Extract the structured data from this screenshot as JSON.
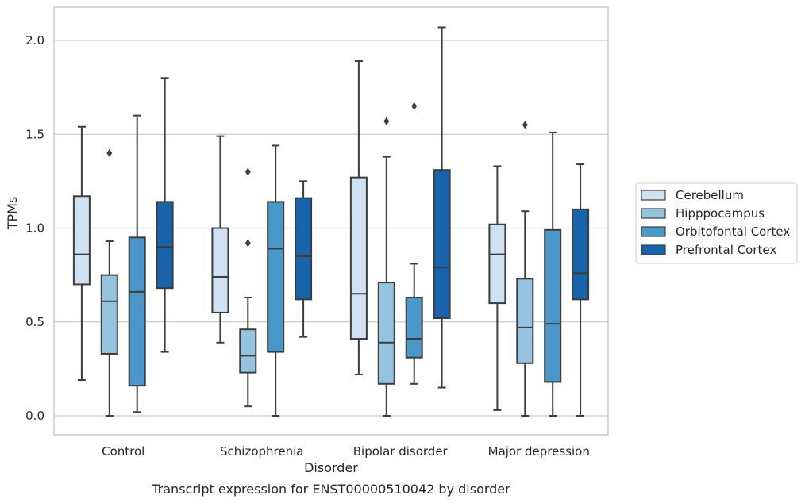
{
  "chart_data": {
    "type": "box",
    "xlabel": "Disorder",
    "ylabel": "TPMs",
    "caption": "Transcript expression for ENST00000510042 by disorder",
    "categories": [
      "Control",
      "Schizophrenia",
      "Bipolar disorder",
      "Major depression"
    ],
    "ylim": [
      -0.1,
      2.18
    ],
    "yticks": [
      0.0,
      0.5,
      1.0,
      1.5,
      2.0
    ],
    "ytick_labels": [
      "0.0",
      "0.5",
      "1.0",
      "1.5",
      "2.0"
    ],
    "grid": true,
    "legend_position": "right",
    "series": [
      {
        "name": "Cerebellum",
        "color": "#d0e1f2",
        "boxes": [
          {
            "whisker_low": 0.19,
            "q1": 0.7,
            "median": 0.86,
            "q3": 1.17,
            "whisker_high": 1.54,
            "outliers": []
          },
          {
            "whisker_low": 0.39,
            "q1": 0.55,
            "median": 0.74,
            "q3": 1.0,
            "whisker_high": 1.49,
            "outliers": []
          },
          {
            "whisker_low": 0.22,
            "q1": 0.41,
            "median": 0.65,
            "q3": 1.27,
            "whisker_high": 1.89,
            "outliers": []
          },
          {
            "whisker_low": 0.03,
            "q1": 0.6,
            "median": 0.86,
            "q3": 1.02,
            "whisker_high": 1.33,
            "outliers": []
          }
        ]
      },
      {
        "name": "Hipppocampus",
        "color": "#94c4df",
        "boxes": [
          {
            "whisker_low": 0.0,
            "q1": 0.33,
            "median": 0.61,
            "q3": 0.75,
            "whisker_high": 0.93,
            "outliers": [
              1.4
            ]
          },
          {
            "whisker_low": 0.05,
            "q1": 0.23,
            "median": 0.32,
            "q3": 0.46,
            "whisker_high": 0.63,
            "outliers": [
              0.92,
              1.3
            ]
          },
          {
            "whisker_low": 0.0,
            "q1": 0.17,
            "median": 0.39,
            "q3": 0.71,
            "whisker_high": 1.38,
            "outliers": [
              1.57
            ]
          },
          {
            "whisker_low": 0.0,
            "q1": 0.28,
            "median": 0.47,
            "q3": 0.73,
            "whisker_high": 1.09,
            "outliers": [
              1.55
            ]
          }
        ]
      },
      {
        "name": "Orbitofontal Cortex",
        "color": "#4a98c9",
        "boxes": [
          {
            "whisker_low": 0.02,
            "q1": 0.16,
            "median": 0.66,
            "q3": 0.95,
            "whisker_high": 1.6,
            "outliers": []
          },
          {
            "whisker_low": 0.0,
            "q1": 0.34,
            "median": 0.89,
            "q3": 1.14,
            "whisker_high": 1.44,
            "outliers": []
          },
          {
            "whisker_low": 0.17,
            "q1": 0.31,
            "median": 0.41,
            "q3": 0.63,
            "whisker_high": 0.81,
            "outliers": [
              1.65
            ]
          },
          {
            "whisker_low": 0.0,
            "q1": 0.18,
            "median": 0.49,
            "q3": 0.99,
            "whisker_high": 1.51,
            "outliers": []
          }
        ]
      },
      {
        "name": "Prefrontal Cortex",
        "color": "#1764ab",
        "boxes": [
          {
            "whisker_low": 0.34,
            "q1": 0.68,
            "median": 0.9,
            "q3": 1.14,
            "whisker_high": 1.8,
            "outliers": []
          },
          {
            "whisker_low": 0.42,
            "q1": 0.62,
            "median": 0.85,
            "q3": 1.16,
            "whisker_high": 1.25,
            "outliers": []
          },
          {
            "whisker_low": 0.15,
            "q1": 0.52,
            "median": 0.79,
            "q3": 1.31,
            "whisker_high": 2.07,
            "outliers": []
          },
          {
            "whisker_low": 0.0,
            "q1": 0.62,
            "median": 0.76,
            "q3": 1.1,
            "whisker_high": 1.34,
            "outliers": []
          }
        ]
      }
    ]
  },
  "colors": {
    "edge": "#3d3d3d",
    "grid": "#cccccc",
    "frame": "#cccccc"
  }
}
